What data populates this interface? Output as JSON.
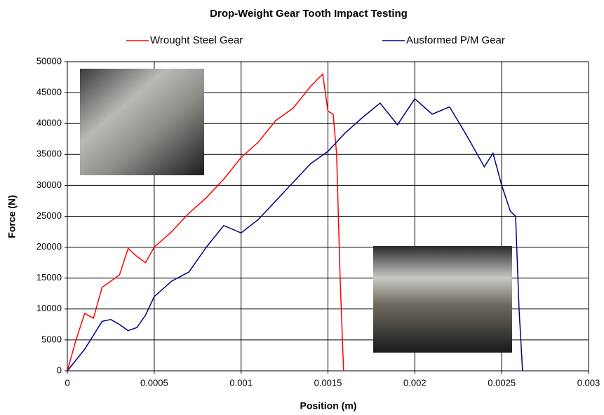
{
  "chart_data": {
    "type": "line",
    "title": "Drop-Weight Gear Tooth Impact Testing",
    "x_label": "Position (m)",
    "y_label": "Force (N)",
    "xlim": [
      0,
      0.003
    ],
    "xticks": [
      0,
      0.0005,
      0.001,
      0.0015,
      0.002,
      0.0025,
      0.003
    ],
    "ylim": [
      0,
      50000
    ],
    "yticks": [
      0,
      5000,
      10000,
      15000,
      20000,
      25000,
      30000,
      35000,
      40000,
      45000,
      50000
    ],
    "grid": true,
    "legend": "top",
    "series": [
      {
        "name": "Wrought Steel Gear",
        "color": "#ff0000",
        "x": [
          0,
          5e-05,
          0.0001,
          0.00015,
          0.0002,
          0.00025,
          0.0003,
          0.00035,
          0.0004,
          0.00045,
          0.0005,
          0.0006,
          0.0007,
          0.0008,
          0.0009,
          0.001,
          0.0011,
          0.0012,
          0.0013,
          0.0014,
          0.00147,
          0.0015,
          0.00153,
          0.00155,
          0.00157,
          0.00159
        ],
        "values": [
          0,
          5000,
          9300,
          8500,
          13500,
          14500,
          15500,
          19800,
          18500,
          17500,
          20000,
          22500,
          25500,
          28000,
          31000,
          34500,
          37000,
          40500,
          42500,
          46000,
          48000,
          42000,
          41500,
          35000,
          15000,
          0
        ]
      },
      {
        "name": "Ausformed P/M Gear",
        "color": "#000080",
        "x": [
          0,
          0.0001,
          0.0002,
          0.00025,
          0.0003,
          0.00035,
          0.0004,
          0.00045,
          0.0005,
          0.0006,
          0.0007,
          0.0008,
          0.0009,
          0.001,
          0.0011,
          0.0012,
          0.0013,
          0.0014,
          0.0015,
          0.0016,
          0.0017,
          0.0018,
          0.0019,
          0.002,
          0.0021,
          0.0022,
          0.0023,
          0.0024,
          0.00245,
          0.0025,
          0.00255,
          0.00258,
          0.0026,
          0.00262
        ],
        "values": [
          0,
          3500,
          8000,
          8300,
          7500,
          6500,
          7000,
          9000,
          12000,
          14500,
          16000,
          20000,
          23500,
          22300,
          24500,
          27500,
          30500,
          33500,
          35500,
          38500,
          41000,
          43300,
          39800,
          44000,
          41500,
          42700,
          38000,
          33000,
          35200,
          30000,
          25800,
          25000,
          10000,
          0
        ]
      }
    ]
  }
}
